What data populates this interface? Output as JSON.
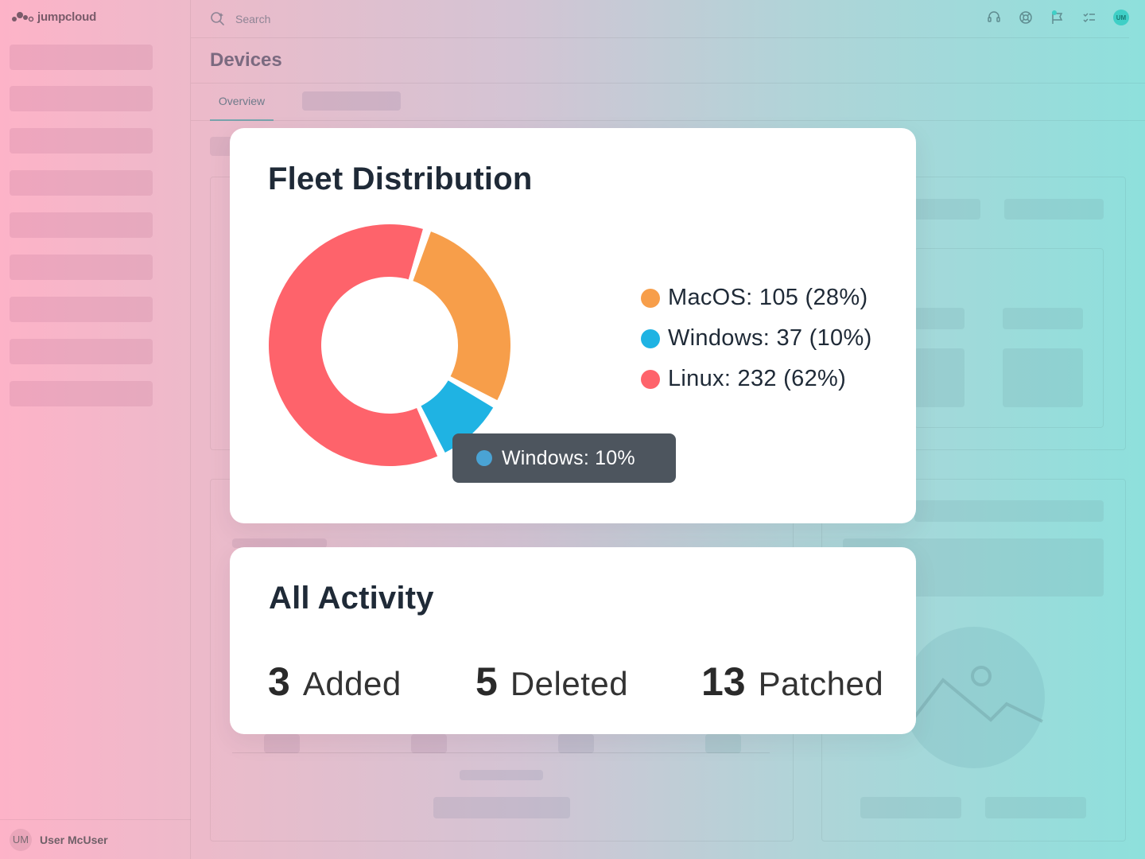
{
  "app": {
    "brand": "jumpcloud"
  },
  "topbar": {
    "search_placeholder": "Search",
    "avatar_initials": "UM"
  },
  "page": {
    "title": "Devices",
    "tabs": [
      {
        "label": "Overview"
      }
    ]
  },
  "user": {
    "initials": "UM",
    "name": "User McUser"
  },
  "fleet_card": {
    "title": "Fleet Distribution",
    "legend": [
      {
        "label": "MacOS: 105 (28%)",
        "color": "#f79e4a"
      },
      {
        "label": "Windows: 37 (10%)",
        "color": "#1fb3e3"
      },
      {
        "label": "Linux: 232 (62%)",
        "color": "#fe636b"
      }
    ],
    "tooltip": {
      "label": "Windows: 10%",
      "color": "#4aa3d4"
    }
  },
  "chart_data": {
    "type": "pie",
    "donut": true,
    "categories": [
      "MacOS",
      "Windows",
      "Linux"
    ],
    "values": [
      105,
      37,
      232
    ],
    "percent": [
      28,
      10,
      62
    ],
    "colors": [
      "#f79e4a",
      "#1fb3e3",
      "#fe636b"
    ]
  },
  "activity_card": {
    "title": "All Activity",
    "stats": [
      {
        "value": "3",
        "label": "Added"
      },
      {
        "value": "5",
        "label": "Deleted"
      },
      {
        "value": "13",
        "label": "Patched"
      }
    ]
  }
}
